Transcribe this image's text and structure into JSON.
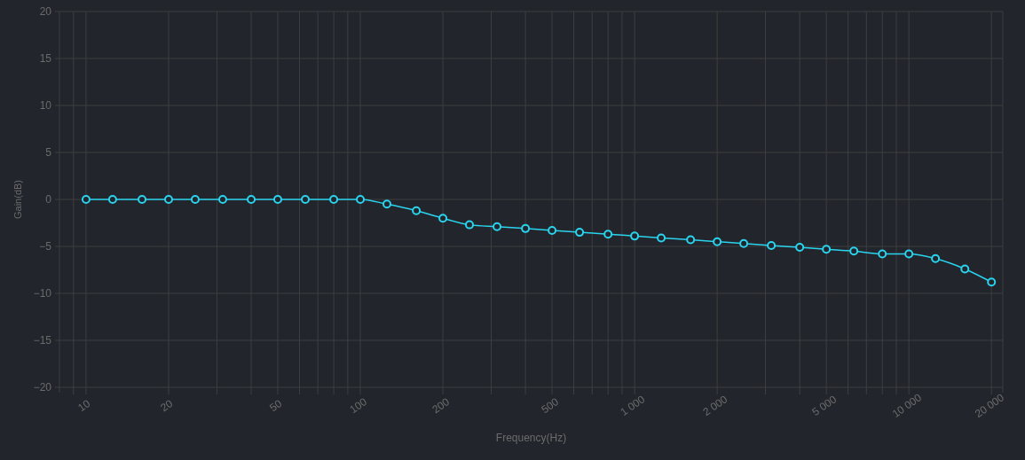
{
  "chart_data": {
    "type": "line",
    "xlabel": "Frequency(Hz)",
    "ylabel": "Gain(dB)",
    "x": [
      10,
      12.5,
      16,
      20,
      25,
      31.5,
      40,
      50,
      63,
      80,
      100,
      125,
      160,
      200,
      250,
      315,
      400,
      500,
      630,
      800,
      1000,
      1250,
      1600,
      2000,
      2500,
      3150,
      4000,
      5000,
      6300,
      8000,
      10000,
      12500,
      16000,
      20000
    ],
    "series": [
      {
        "color": "#2ad4ee",
        "values": [
          0,
          0,
          0,
          0,
          0,
          0,
          0,
          0,
          0,
          0,
          0,
          -0.5,
          -1.2,
          -2.0,
          -2.7,
          -2.9,
          -3.1,
          -3.3,
          -3.5,
          -3.7,
          -3.9,
          -4.1,
          -4.3,
          -4.5,
          -4.7,
          -4.9,
          -5.1,
          -5.3,
          -5.5,
          -5.8,
          -5.8,
          -6.3,
          -7.4,
          -8.8
        ]
      }
    ],
    "log": "x",
    "xlim": [
      8,
      22000
    ],
    "xticks": [
      {
        "value": 9,
        "label": null
      },
      10,
      20,
      {
        "value": 30,
        "label": null
      },
      {
        "value": 40,
        "label": null
      },
      50,
      {
        "value": 60,
        "label": null
      },
      {
        "value": 70,
        "label": null
      },
      {
        "value": 80,
        "label": null
      },
      {
        "value": 90,
        "label": null
      },
      100,
      200,
      {
        "value": 300,
        "label": null
      },
      {
        "value": 400,
        "label": null
      },
      500,
      {
        "value": 600,
        "label": null
      },
      {
        "value": 700,
        "label": null
      },
      {
        "value": 800,
        "label": null
      },
      {
        "value": 900,
        "label": null
      },
      {
        "value": 1000,
        "label": "1 000"
      },
      {
        "value": 2000,
        "label": "2 000"
      },
      {
        "value": 3000,
        "label": null
      },
      {
        "value": 4000,
        "label": null
      },
      {
        "value": 5000,
        "label": "5 000"
      },
      {
        "value": 6000,
        "label": null
      },
      {
        "value": 7000,
        "label": null
      },
      {
        "value": 8000,
        "label": null
      },
      {
        "value": 9000,
        "label": null
      },
      {
        "value": 10000,
        "label": "10 000"
      },
      {
        "value": 20000,
        "label": "20 000"
      }
    ],
    "ylim": [
      -20,
      20
    ],
    "yticks": [
      {
        "value": -20,
        "label": "−20"
      },
      {
        "value": -15,
        "label": "−15"
      },
      {
        "value": -10,
        "label": "−10"
      },
      {
        "value": -5,
        "label": "−5"
      },
      0,
      5,
      10,
      15,
      20
    ],
    "grid": true,
    "marker": "circle",
    "line_style": "solid"
  }
}
